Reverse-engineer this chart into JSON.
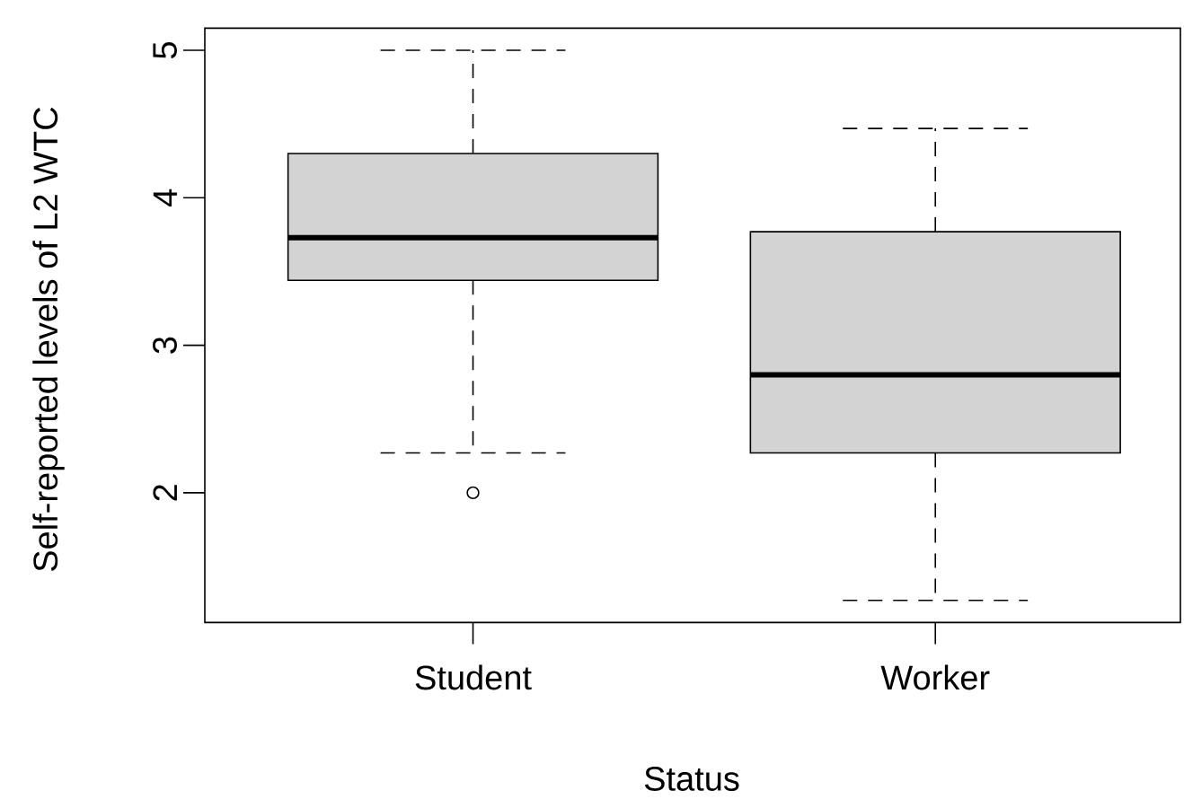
{
  "chart_data": {
    "type": "box",
    "xlabel": "Status",
    "ylabel": "Self-reported levels of L2 WTC",
    "categories": [
      "Student",
      "Worker"
    ],
    "boxes": [
      {
        "low": 2.27,
        "q1": 3.44,
        "median": 3.73,
        "q3": 4.3,
        "high": 5.0,
        "outliers": [
          2.0
        ]
      },
      {
        "low": 1.27,
        "q1": 2.27,
        "median": 2.8,
        "q3": 3.77,
        "high": 4.47
      }
    ],
    "color": "#d3d3d3",
    "ylim": [
      1.12,
      5.15
    ],
    "yticks": [
      2,
      3,
      4,
      5
    ]
  }
}
